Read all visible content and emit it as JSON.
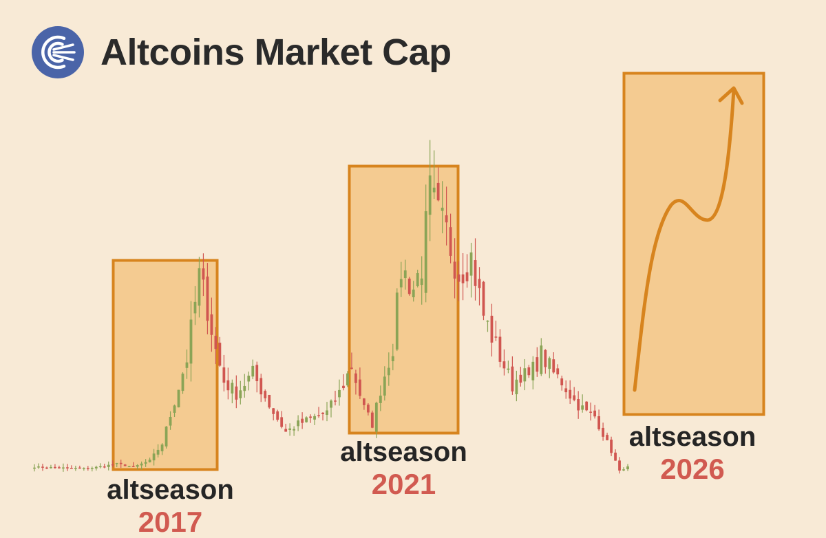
{
  "header": {
    "title": "Altcoins Market Cap",
    "logo_icon": "concentric-arcs-logo-icon",
    "logo_color": "#4a64a8"
  },
  "colors": {
    "background": "#f8ead6",
    "up_candle": "#8aa456",
    "down_candle": "#d05650",
    "highlight_fill": "#f2c27e",
    "highlight_stroke": "#d7841e",
    "projection_line": "#d7841e",
    "year_text": "#d15a50"
  },
  "seasons": [
    {
      "word": "altseason",
      "year": "2017"
    },
    {
      "word": "altseason",
      "year": "2021"
    },
    {
      "word": "altseason",
      "year": "2026"
    }
  ],
  "chart_data": {
    "type": "candlestick",
    "title": "Altcoins Market Cap",
    "xlabel": "",
    "ylabel": "",
    "axes_visible": false,
    "grid": false,
    "legend": "none",
    "y_scale": "relative (no axis values printed)",
    "highlights": [
      {
        "label": "altseason",
        "year": "2017",
        "start_candle": 22,
        "end_candle": 44
      },
      {
        "label": "altseason",
        "year": "2021",
        "start_candle": 79,
        "end_candle": 104
      },
      {
        "label": "altseason",
        "year": "2026",
        "projected": true,
        "shape": "rise, pause, then sharp rise"
      }
    ],
    "close_path": [
      [
        0,
        10
      ],
      [
        13,
        8
      ],
      [
        20,
        14
      ],
      [
        24,
        10
      ],
      [
        28,
        18
      ],
      [
        31,
        40
      ],
      [
        34,
        95
      ],
      [
        37,
        150
      ],
      [
        40,
        255
      ],
      [
        42,
        215
      ],
      [
        44,
        160
      ],
      [
        46,
        120
      ],
      [
        49,
        105
      ],
      [
        53,
        130
      ],
      [
        55,
        110
      ],
      [
        58,
        80
      ],
      [
        61,
        55
      ],
      [
        64,
        65
      ],
      [
        71,
        80
      ],
      [
        74,
        105
      ],
      [
        77,
        140
      ],
      [
        80,
        85
      ],
      [
        82,
        65
      ],
      [
        84,
        110
      ],
      [
        87,
        165
      ],
      [
        89,
        265
      ],
      [
        92,
        240
      ],
      [
        94,
        270
      ],
      [
        96,
        360
      ],
      [
        98,
        330
      ],
      [
        100,
        310
      ],
      [
        103,
        260
      ],
      [
        106,
        280
      ],
      [
        109,
        205
      ],
      [
        112,
        165
      ],
      [
        114,
        140
      ],
      [
        116,
        115
      ],
      [
        118,
        130
      ],
      [
        120,
        125
      ],
      [
        123,
        155
      ],
      [
        126,
        130
      ],
      [
        128,
        120
      ],
      [
        131,
        95
      ],
      [
        134,
        80
      ],
      [
        136,
        75
      ],
      [
        140,
        30
      ],
      [
        142,
        5
      ],
      [
        144,
        10
      ]
    ]
  }
}
